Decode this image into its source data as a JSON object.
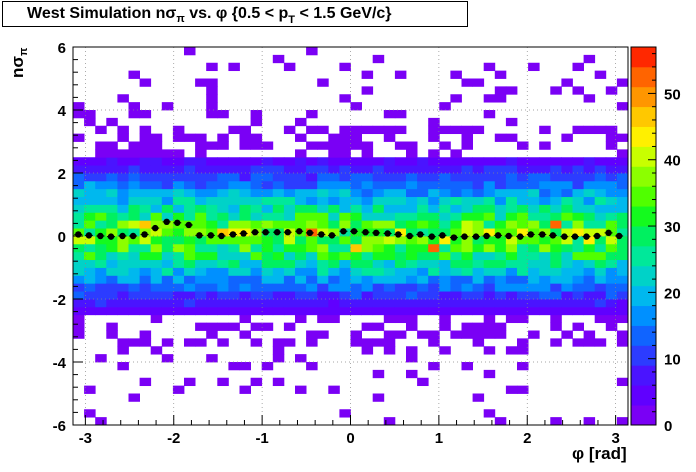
{
  "chart_data": {
    "type": "heatmap",
    "title": {
      "prefix": "West Simulation n",
      "sigma": "σ",
      "pi": "π",
      "middle": " vs. ",
      "phi": "φ",
      "range_a": " {0.5 < p",
      "pt_sub": "T",
      "range_b": " < 1.5 GeV/c}"
    },
    "ylabel": {
      "n": "n",
      "sigma": "σ",
      "pi": "π"
    },
    "xlabel": "φ [rad]",
    "xlim": [
      -3.14,
      3.14
    ],
    "ylim": [
      -6,
      6
    ],
    "zlim": [
      0,
      57
    ],
    "x_ticks": [
      "-3",
      "-2",
      "-1",
      "0",
      "1",
      "2",
      "3"
    ],
    "x_tick_values": [
      -3,
      -2,
      -1,
      0,
      1,
      2,
      3
    ],
    "y_ticks": [
      "6",
      "4",
      "2",
      "0",
      "-2",
      "-4",
      "-6"
    ],
    "y_tick_values": [
      6,
      4,
      2,
      0,
      -2,
      -4,
      -6
    ],
    "z_ticks": [
      "50",
      "40",
      "30",
      "20",
      "10",
      "0"
    ],
    "z_tick_values": [
      50,
      40,
      30,
      20,
      10,
      0
    ],
    "grid": true,
    "bins": {
      "nx": 50,
      "ny": 48
    },
    "band_profile": {
      "description_values_y": [
        -2.5,
        -2.0,
        -1.5,
        -1.0,
        -0.5,
        0.0,
        0.5,
        1.0,
        1.5,
        2.0,
        2.5
      ],
      "mean_counts": [
        3,
        9,
        15,
        22,
        30,
        36,
        30,
        22,
        16,
        10,
        4
      ]
    },
    "profile_x": [
      -3.08,
      -2.96,
      -2.83,
      -2.71,
      -2.58,
      -2.46,
      -2.33,
      -2.21,
      -2.08,
      -1.96,
      -1.83,
      -1.71,
      -1.58,
      -1.46,
      -1.33,
      -1.21,
      -1.08,
      -0.96,
      -0.83,
      -0.71,
      -0.58,
      -0.46,
      -0.33,
      -0.21,
      -0.08,
      0.04,
      0.17,
      0.29,
      0.42,
      0.54,
      0.67,
      0.79,
      0.92,
      1.04,
      1.17,
      1.29,
      1.42,
      1.54,
      1.67,
      1.79,
      1.92,
      2.04,
      2.17,
      2.29,
      2.42,
      2.54,
      2.67,
      2.79,
      2.92,
      3.04
    ],
    "profile_y": [
      0.05,
      0.02,
      0.0,
      -0.02,
      0.0,
      0.0,
      0.05,
      0.25,
      0.45,
      0.42,
      0.35,
      0.02,
      0.02,
      0.0,
      0.05,
      0.08,
      0.12,
      0.12,
      0.12,
      0.12,
      0.15,
      0.1,
      0.05,
      0.02,
      0.15,
      0.15,
      0.12,
      0.1,
      0.08,
      0.05,
      0.0,
      0.05,
      -0.02,
      0.02,
      -0.05,
      -0.02,
      -0.02,
      0.0,
      0.02,
      0.0,
      -0.02,
      0.05,
      0.05,
      0.02,
      -0.02,
      -0.02,
      -0.02,
      0.0,
      0.1,
      0.0
    ],
    "colors": {
      "palette": [
        "#7a00f5",
        "#6000ff",
        "#4a14ff",
        "#2c3cff",
        "#1064ff",
        "#0090ff",
        "#00b8ee",
        "#00d2c8",
        "#00e89a",
        "#00f060",
        "#14fa1e",
        "#50ff00",
        "#8cff00",
        "#c8ff00",
        "#fff000",
        "#ffc800",
        "#ff9600",
        "#ff6400",
        "#ff2800"
      ],
      "profile_marker": "#000000"
    }
  }
}
